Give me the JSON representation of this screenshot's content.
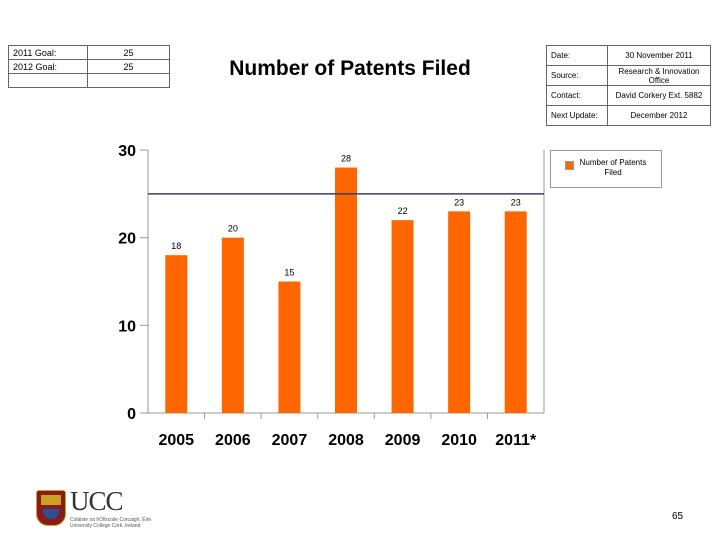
{
  "goals": [
    {
      "label": "2011 Goal:",
      "value": "25"
    },
    {
      "label": "2012 Goal:",
      "value": "25"
    },
    {
      "label": "",
      "value": ""
    }
  ],
  "title": "Number of Patents Filed",
  "info": [
    {
      "label": "Date:",
      "value": "30 November 2011"
    },
    {
      "label": "Source:",
      "value": "Research & Innovation Office"
    },
    {
      "label": "Contact:",
      "value": "David Corkery Ext. 5882"
    },
    {
      "label": "Next Update:",
      "value": "December 2012"
    }
  ],
  "chart_data": {
    "type": "bar",
    "categories": [
      "2005",
      "2006",
      "2007",
      "2008",
      "2009",
      "2010",
      "2011*"
    ],
    "series": [
      {
        "name": "Number of Patents Filed",
        "values": [
          18,
          20,
          15,
          28,
          22,
          23,
          23
        ],
        "color": "#ff6600"
      }
    ],
    "data_labels": [
      "18",
      "20",
      "15",
      "28",
      "22",
      "23",
      "23"
    ],
    "yticks": [
      0,
      10,
      20,
      30
    ],
    "ylim": [
      0,
      30
    ],
    "goal_line": 25,
    "goal_line_color": "#3c3c6e",
    "legend": "top-right",
    "grid": false
  },
  "logo": {
    "wordmark": "UCC",
    "line1": "Coláiste na hOllscoile Corcaigh, Éire",
    "line2": "University College Cork, Ireland"
  },
  "page_number": "65"
}
